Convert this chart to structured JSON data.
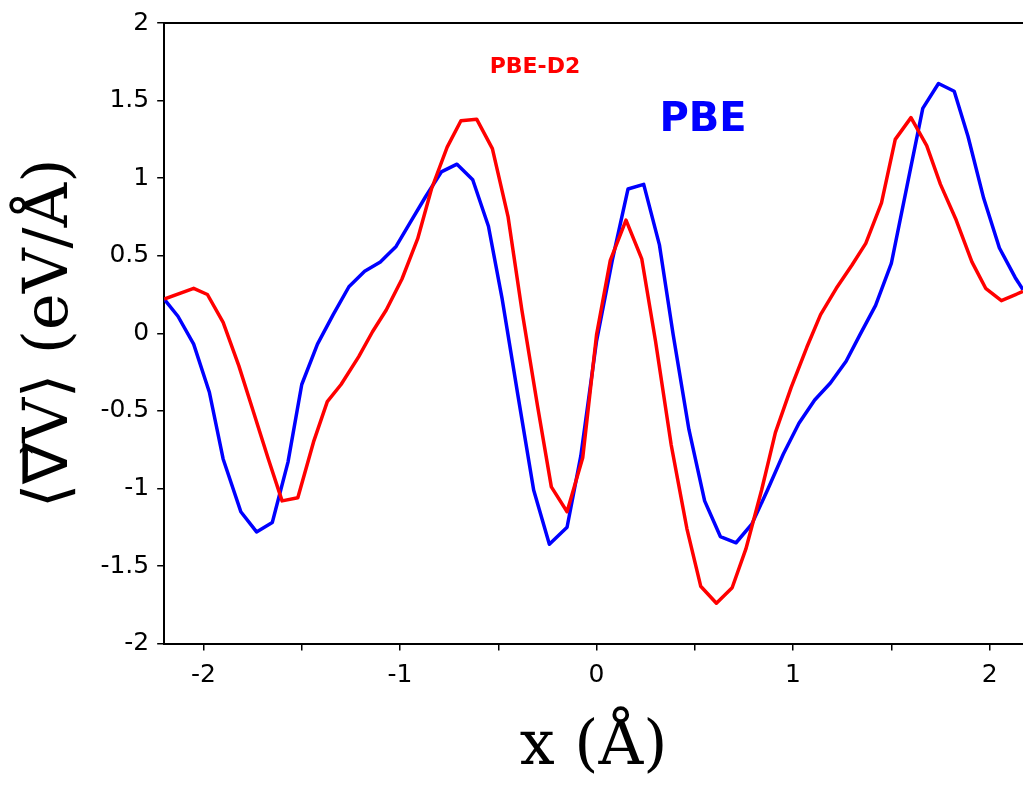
{
  "chart_data": {
    "type": "line",
    "xlabel": "x (Å)",
    "ylabel": "⟨∇⃗V⟩ (eV/Å)",
    "xlim": [
      -2.2,
      2.17
    ],
    "ylim": [
      -2,
      2
    ],
    "xticks": [
      -2,
      {
        "value": -1.5,
        "label": null
      },
      -1,
      {
        "value": -0.5,
        "label": null
      },
      0,
      {
        "value": 0.5,
        "label": null
      },
      1,
      {
        "value": 1.5,
        "label": null
      },
      2
    ],
    "yticks": [
      -2,
      -1.5,
      -1,
      -0.5,
      0,
      0.5,
      1,
      1.5,
      2
    ],
    "grid": false,
    "marker": "none",
    "line_style": "solid",
    "series": [
      {
        "name": "PBE-D2",
        "color": "#ff0000",
        "x": [
          -2.2,
          -2.05,
          -1.98,
          -1.9,
          -1.82,
          -1.75,
          -1.67,
          -1.6,
          -1.52,
          -1.44,
          -1.37,
          -1.3,
          -1.21,
          -1.14,
          -1.07,
          -0.99,
          -0.91,
          -0.84,
          -0.76,
          -0.69,
          -0.61,
          -0.53,
          -0.45,
          -0.38,
          -0.3,
          -0.23,
          -0.15,
          -0.07,
          0,
          0.07,
          0.15,
          0.23,
          0.3,
          0.38,
          0.46,
          0.53,
          0.61,
          0.69,
          0.76,
          0.84,
          0.91,
          0.99,
          1.07,
          1.14,
          1.22,
          1.3,
          1.37,
          1.45,
          1.52,
          1.6,
          1.68,
          1.75,
          1.83,
          1.91,
          1.98,
          2.06,
          2.17
        ],
        "values": [
          0.22,
          0.29,
          0.25,
          0.07,
          -0.21,
          -0.49,
          -0.81,
          -1.08,
          -1.06,
          -0.7,
          -0.44,
          -0.33,
          -0.15,
          0.01,
          0.15,
          0.35,
          0.61,
          0.93,
          1.2,
          1.37,
          1.38,
          1.19,
          0.75,
          0.15,
          -0.47,
          -0.99,
          -1.15,
          -0.8,
          -0.01,
          0.47,
          0.73,
          0.48,
          -0.05,
          -0.72,
          -1.26,
          -1.63,
          -1.74,
          -1.64,
          -1.39,
          -1.01,
          -0.64,
          -0.35,
          -0.09,
          0.12,
          0.29,
          0.44,
          0.58,
          0.84,
          1.25,
          1.39,
          1.21,
          0.96,
          0.73,
          0.46,
          0.29,
          0.21,
          0.27
        ]
      },
      {
        "name": "PBE",
        "color": "#0000ff",
        "x": [
          -2.2,
          -2.13,
          -2.05,
          -1.97,
          -1.9,
          -1.81,
          -1.73,
          -1.65,
          -1.57,
          -1.5,
          -1.42,
          -1.34,
          -1.26,
          -1.18,
          -1.1,
          -1.02,
          -0.95,
          -0.87,
          -0.79,
          -0.71,
          -0.63,
          -0.55,
          -0.48,
          -0.4,
          -0.32,
          -0.24,
          -0.15,
          -0.08,
          0,
          0.08,
          0.16,
          0.24,
          0.32,
          0.39,
          0.47,
          0.55,
          0.63,
          0.71,
          0.79,
          0.87,
          0.95,
          1.03,
          1.11,
          1.19,
          1.27,
          1.34,
          1.42,
          1.5,
          1.58,
          1.66,
          1.74,
          1.82,
          1.89,
          1.97,
          2.05,
          2.13,
          2.17
        ],
        "values": [
          0.22,
          0.11,
          -0.07,
          -0.38,
          -0.81,
          -1.15,
          -1.28,
          -1.22,
          -0.83,
          -0.33,
          -0.07,
          0.12,
          0.3,
          0.4,
          0.46,
          0.56,
          0.71,
          0.88,
          1.04,
          1.09,
          0.99,
          0.69,
          0.22,
          -0.4,
          -1.01,
          -1.36,
          -1.25,
          -0.79,
          -0.05,
          0.47,
          0.93,
          0.96,
          0.57,
          -0.01,
          -0.62,
          -1.08,
          -1.31,
          -1.35,
          -1.23,
          -1.01,
          -0.78,
          -0.58,
          -0.43,
          -0.32,
          -0.18,
          -0.01,
          0.18,
          0.45,
          0.95,
          1.45,
          1.61,
          1.56,
          1.27,
          0.87,
          0.55,
          0.36,
          0.28
        ]
      }
    ]
  }
}
